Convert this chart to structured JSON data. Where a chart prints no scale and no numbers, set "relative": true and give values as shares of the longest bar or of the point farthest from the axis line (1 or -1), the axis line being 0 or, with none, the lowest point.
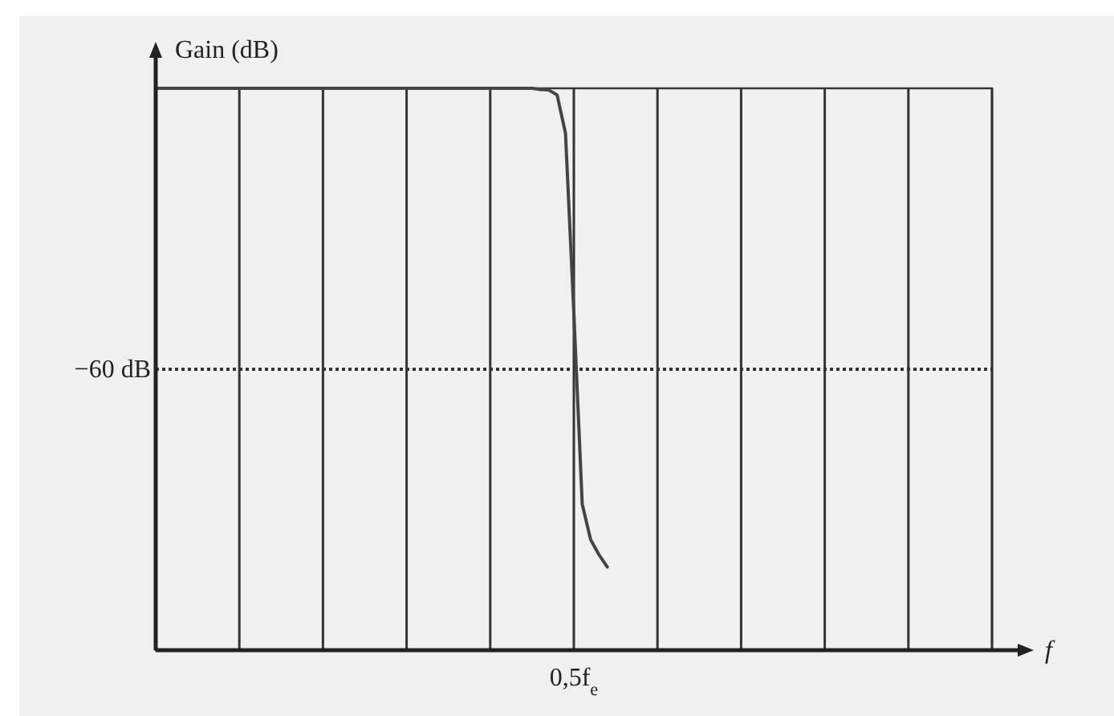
{
  "chart_data": {
    "type": "line",
    "xlabel": "f",
    "ylabel": "Gain (dB)",
    "relative": true,
    "grid": "x",
    "marker": "none",
    "line_style": "solid",
    "categories": [
      null,
      null,
      null,
      null,
      null,
      null,
      null,
      null,
      null,
      null,
      null,
      null,
      null,
      null,
      null,
      null,
      null,
      null,
      null,
      null,
      null,
      null,
      null,
      null,
      null,
      null,
      null,
      null,
      null,
      null,
      null,
      null,
      null,
      null,
      null,
      null,
      null,
      null,
      null,
      null,
      null,
      null,
      null,
      null,
      null,
      null,
      null,
      null,
      null,
      null,
      null,
      null,
      null,
      null,
      null,
      null,
      null,
      null,
      null,
      null,
      null,
      null,
      null,
      null,
      null,
      null,
      null,
      null,
      null,
      null,
      null,
      null,
      null,
      null,
      null,
      null,
      null,
      null,
      null,
      null,
      null,
      null,
      null,
      null,
      null,
      null,
      null,
      null,
      null,
      null,
      null,
      null,
      null,
      null,
      null,
      null,
      null,
      null,
      null,
      null,
      null
    ],
    "annotations": [
      "0,5f$_{e}$"
    ],
    "ref_lines": [
      {
        "axis": "y",
        "value": 0.5,
        "label": "−60 dB",
        "line_style": "dotted"
      }
    ],
    "series": [
      {
        "color": "#444444",
        "values": [
          1,
          1,
          1,
          1,
          1,
          1,
          1,
          1,
          1,
          1,
          1,
          1,
          1,
          1,
          1,
          1,
          1,
          1,
          1,
          1,
          1,
          1,
          1,
          1,
          1,
          1,
          1,
          1,
          1,
          1,
          1,
          1,
          1,
          1,
          1,
          1,
          1,
          1,
          1,
          1,
          1,
          1,
          1,
          1,
          1,
          1,
          0.998,
          0.997,
          0.988,
          0.92,
          0.6,
          0.26,
          0.197,
          0.17,
          0.148,
          null,
          null,
          null,
          null,
          null,
          null,
          null,
          null,
          null,
          null,
          null,
          null,
          null,
          null,
          null,
          null,
          null,
          null,
          null,
          null,
          null,
          null,
          null,
          null,
          null,
          null,
          null,
          null,
          null,
          null,
          null,
          null,
          null,
          null,
          null,
          null,
          null,
          null,
          null,
          null,
          null,
          null,
          null,
          null,
          null,
          null
        ]
      }
    ]
  }
}
